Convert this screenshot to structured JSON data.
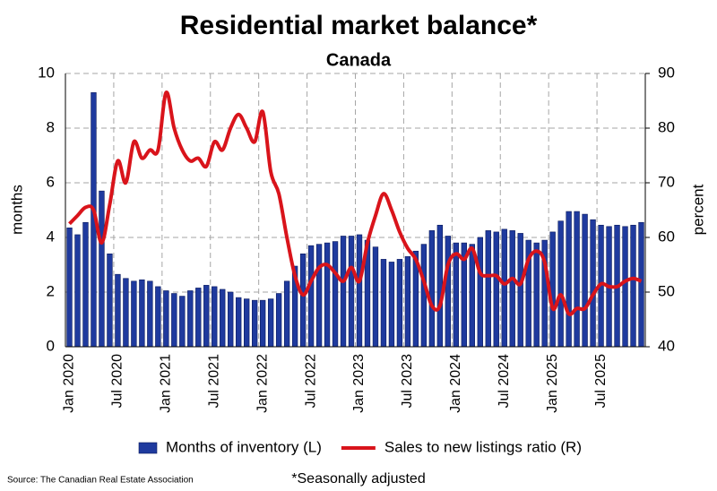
{
  "chart_data": {
    "type": "combo",
    "title": "Residential market balance*",
    "subtitle": "Canada",
    "ylabel": "months",
    "y2label": "percent",
    "categories": [
      "Jan 2020",
      null,
      null,
      null,
      null,
      null,
      "Jul 2020",
      null,
      null,
      null,
      null,
      null,
      "Jan 2021",
      null,
      null,
      null,
      null,
      null,
      "Jul 2021",
      null,
      null,
      null,
      null,
      null,
      "Jan 2022",
      null,
      null,
      null,
      null,
      null,
      "Jul 2022",
      null,
      null,
      null,
      null,
      null,
      "Jan 2023",
      null,
      null,
      null,
      null,
      null,
      "Jul 2023",
      null,
      null,
      null,
      null,
      null,
      "Jan 2024",
      null,
      null,
      null,
      null,
      null,
      "Jul 2024",
      null,
      null,
      null,
      null,
      null,
      "Jan 2025",
      null,
      null,
      null,
      null,
      null,
      "Jul 2025",
      null,
      null,
      null,
      null,
      null
    ],
    "series": [
      {
        "name": "Months of inventory (L)",
        "type": "bar",
        "axis": "y",
        "color": "#1f3a9e",
        "values": [
          4.35,
          4.1,
          4.55,
          9.3,
          5.7,
          3.4,
          2.65,
          2.5,
          2.4,
          2.45,
          2.4,
          2.2,
          2.05,
          1.95,
          1.85,
          2.05,
          2.15,
          2.25,
          2.2,
          2.1,
          2.0,
          1.8,
          1.75,
          1.7,
          1.7,
          1.75,
          1.95,
          2.4,
          2.95,
          3.4,
          3.7,
          3.75,
          3.8,
          3.85,
          4.05,
          4.05,
          4.1,
          3.9,
          3.65,
          3.2,
          3.1,
          3.2,
          3.3,
          3.5,
          3.75,
          4.25,
          4.45,
          4.05,
          3.8,
          3.8,
          3.75,
          4.0,
          4.25,
          4.2,
          4.3,
          4.25,
          4.15,
          3.9,
          3.8,
          3.9,
          4.2,
          4.6,
          4.95,
          4.95,
          4.85,
          4.65,
          4.45,
          4.4,
          4.45,
          4.4,
          4.45,
          4.55
        ]
      },
      {
        "name": "Sales to new listings ratio (R)",
        "type": "line",
        "axis": "y2",
        "color": "#d9141b",
        "values": [
          62.5,
          64,
          65.5,
          65,
          59,
          66,
          74,
          70,
          77.5,
          74.5,
          76,
          76,
          86.5,
          80,
          76,
          74,
          74.5,
          73,
          77.5,
          76,
          80,
          82.5,
          80,
          77.5,
          83,
          72,
          68,
          60,
          53,
          49.5,
          52,
          54.5,
          55,
          53.5,
          52,
          54.5,
          52,
          59,
          64,
          68,
          65,
          61,
          58,
          56,
          52,
          47.5,
          47.5,
          55,
          57,
          56,
          58,
          53.5,
          53,
          53,
          51.5,
          52.5,
          51.5,
          56,
          57.5,
          55.5,
          47,
          49.5,
          46,
          47,
          47,
          49.5,
          51.5,
          51,
          51,
          52,
          52.5,
          52
        ]
      }
    ],
    "ylim": [
      0,
      10
    ],
    "yticks": [
      0,
      2,
      4,
      6,
      8,
      10
    ],
    "y2lim": [
      40,
      90
    ],
    "y2ticks": [
      40,
      50,
      60,
      70,
      80,
      90
    ],
    "grid": true,
    "legend": "bottom",
    "source": "Source: The Canadian Real Estate Association",
    "footnote": "*Seasonally adjusted"
  }
}
